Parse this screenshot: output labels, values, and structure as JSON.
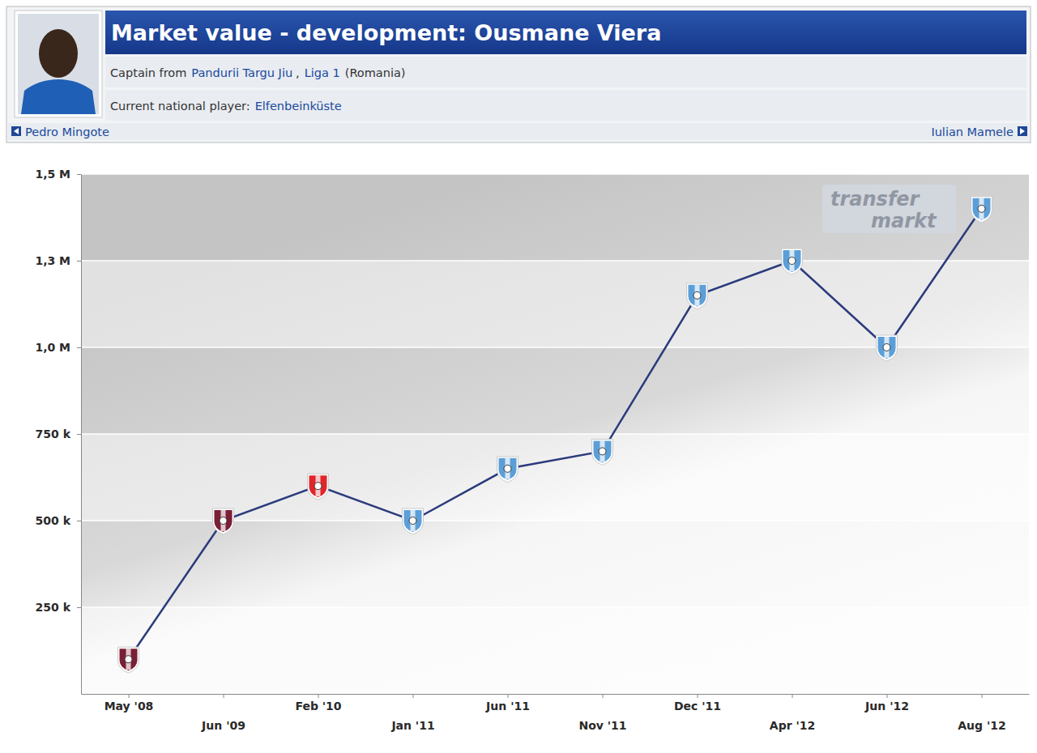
{
  "header": {
    "captain": [
      "Captain from",
      "Pandurii Targu Jiu",
      ",",
      "Liga 1",
      "(Romania)"
    ],
    "national": [
      "Current national player:",
      "Elfenbeinküste"
    ],
    "nav_prev": "Pedro Mingote",
    "nav_next": "Iulian Mamele"
  },
  "watermark": {
    "line1": "transfer",
    "line2": "markt"
  },
  "chart_data": {
    "type": "line",
    "title": "Market value - development: Ousmane Viera",
    "categories": [
      "May '08",
      "Jun '09",
      "Feb '10",
      "Jan '11",
      "Jun '11",
      "Nov '11",
      "Dec '11",
      "Apr '12",
      "Jun '12",
      "Aug '12"
    ],
    "values": [
      100000,
      500000,
      600000,
      500000,
      650000,
      700000,
      1150000,
      1250000,
      1000000,
      1400000
    ],
    "color": "#2b3b7c",
    "colors": [
      "#7a1f35",
      "#7a1f35",
      "#e0262b",
      "#5c9fd8",
      "#5c9fd8",
      "#5c9fd8",
      "#5c9fd8",
      "#5c9fd8",
      "#5c9fd8",
      "#5c9fd8"
    ],
    "marker": "badge",
    "ylim": [
      0,
      1500000
    ],
    "yticks": [
      {
        "value": 250000,
        "label": "250 k"
      },
      {
        "value": 500000,
        "label": "500 k"
      },
      {
        "value": 750000,
        "label": "750 k"
      },
      {
        "value": 1000000,
        "label": "1,0 M"
      },
      {
        "value": 1250000,
        "label": "1,3 M"
      },
      {
        "value": 1500000,
        "label": "1,5 M"
      }
    ],
    "grid": true
  }
}
